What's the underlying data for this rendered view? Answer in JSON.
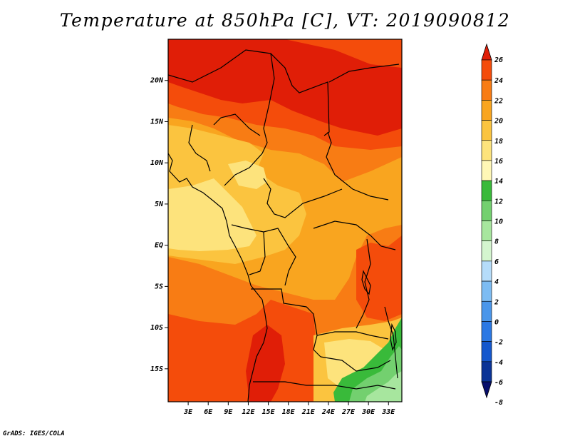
{
  "title": "Temperature at 850hPa [C], VT: 2019090812",
  "credit": "GrADS: IGES/COLA",
  "map": {
    "lat_labels": [
      "20N",
      "15N",
      "10N",
      "5N",
      "EQ",
      "5S",
      "10S",
      "15S"
    ],
    "lon_labels": [
      "3E",
      "6E",
      "9E",
      "12E",
      "15E",
      "18E",
      "21E",
      "24E",
      "27E",
      "30E",
      "33E"
    ],
    "lat_range": [
      -19,
      25
    ],
    "lon_range": [
      0,
      35
    ]
  },
  "colorbar": {
    "labels": [
      "26",
      "24",
      "22",
      "20",
      "18",
      "16",
      "14",
      "12",
      "10",
      "8",
      "6",
      "4",
      "2",
      "0",
      "-2",
      "-4",
      "-6",
      "-8"
    ],
    "colors": [
      "#e01e07",
      "#f44c0b",
      "#f87c14",
      "#f9a51f",
      "#fbc43f",
      "#fde37c",
      "#fff7b6",
      "#39ba3a",
      "#73d06f",
      "#a7e69e",
      "#d4f5cf",
      "#b5dcfa",
      "#7dbcf3",
      "#4a96ea",
      "#2b78e4",
      "#1457cd",
      "#0a3396",
      "#070e6b"
    ]
  },
  "fields": {
    "levels": [
      {
        "value": "16",
        "color": "#fde37c"
      },
      {
        "value": "18",
        "color": "#fbc43f"
      },
      {
        "value": "20",
        "color": "#f9a51f"
      },
      {
        "value": "22",
        "color": "#f87c14"
      },
      {
        "value": "24",
        "color": "#f44c0b"
      },
      {
        "value": "26",
        "color": "#e01e07"
      },
      {
        "value": "12",
        "color": "#39ba3a"
      },
      {
        "value": "10",
        "color": "#73d06f"
      },
      {
        "value": "8",
        "color": "#a7e69e"
      }
    ]
  }
}
